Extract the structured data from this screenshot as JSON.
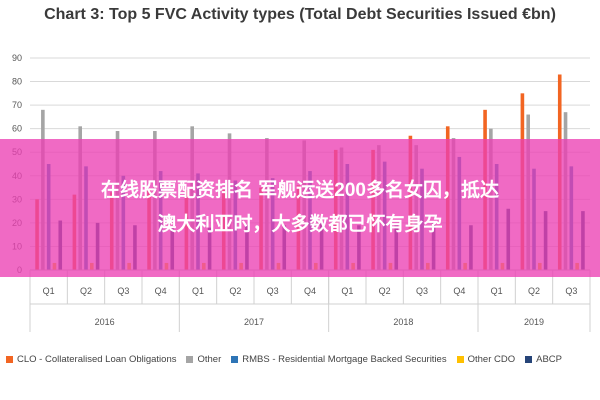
{
  "chart_data": {
    "type": "bar",
    "title": "Chart 3: Top 5 FVC Activity types (Total Debt Securities Issued €bn)",
    "ylim": [
      0,
      90
    ],
    "yticks": [
      0,
      10,
      20,
      30,
      40,
      50,
      60,
      70,
      80,
      90
    ],
    "grid": true,
    "legend_position": "bottom",
    "categories": [
      "Q1",
      "Q2",
      "Q3",
      "Q4",
      "Q1",
      "Q2",
      "Q3",
      "Q4",
      "Q1",
      "Q2",
      "Q3",
      "Q4",
      "Q1",
      "Q2",
      "Q3"
    ],
    "groups": [
      {
        "label": "2016",
        "count": 4
      },
      {
        "label": "2017",
        "count": 4
      },
      {
        "label": "2018",
        "count": 4
      },
      {
        "label": "2019",
        "count": 3
      }
    ],
    "series": [
      {
        "name": "CLO - Collateralised Loan Obligations",
        "color": "#f26522",
        "values": [
          30,
          32,
          33,
          34,
          34,
          34,
          35,
          36,
          51,
          51,
          57,
          61,
          68,
          75,
          83
        ]
      },
      {
        "name": "Other",
        "color": "#a5a5a5",
        "values": [
          68,
          61,
          59,
          59,
          61,
          58,
          56,
          55,
          52,
          53,
          53,
          56,
          60,
          66,
          67
        ]
      },
      {
        "name": "RMBS - Residential Mortgage Backed Securities",
        "color": "#2e75b6",
        "values": [
          45,
          44,
          40,
          42,
          41,
          38,
          39,
          42,
          45,
          46,
          43,
          48,
          45,
          43,
          44
        ]
      },
      {
        "name": "Other CDO",
        "color": "#ffc000",
        "values": [
          3,
          3,
          3,
          3,
          3,
          3,
          3,
          3,
          3,
          3,
          3,
          3,
          3,
          3,
          3
        ]
      },
      {
        "name": "ABCP",
        "color": "#264478",
        "values": [
          21,
          20,
          19,
          18,
          18,
          19,
          19,
          20,
          19,
          19,
          20,
          19,
          26,
          25,
          25
        ]
      }
    ]
  },
  "overlay": {
    "line1": "在线股票配资排名 军舰运送200多名女囚，抵达",
    "line2": "澳大利亚时，大多数都已怀有身孕"
  }
}
